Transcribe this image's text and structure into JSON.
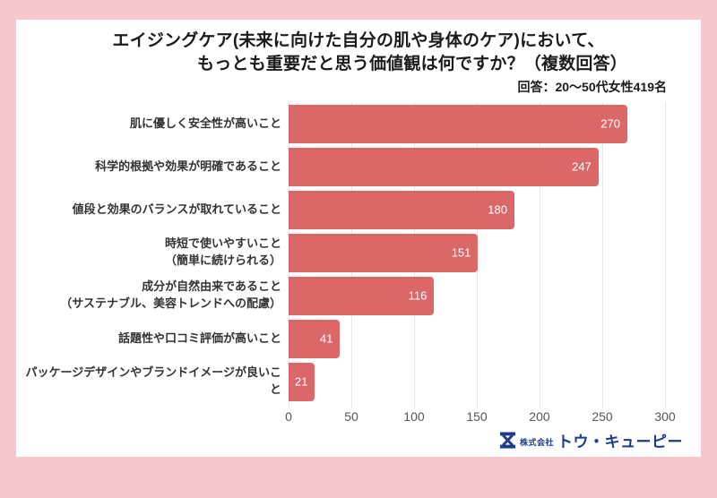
{
  "frame_color": "#f9c8cc",
  "header": {
    "title_line1": "エイジングケア(未来に向けた自分の肌や身体のケア)において、",
    "title_line2": "もっとも重要だと思う価値観は何ですか？（複数回答）",
    "subtitle": "回答：20〜50代女性419名"
  },
  "chart_data": {
    "type": "bar",
    "orientation": "horizontal",
    "title": "エイジングケア(未来に向けた自分の肌や身体のケア)において、もっとも重要だと思う価値観は何ですか？（複数回答）",
    "categories": [
      "肌に優しく安全性が高いこと",
      "科学的根拠や効果が明確であること",
      "値段と効果のバランスが取れていること",
      "時短で使いやすいこと\n（簡単に続けられる）",
      "成分が自然由来であること\n（サステナブル、美容トレンドへの配慮）",
      "話題性や口コミ評価が高いこと",
      "パッケージデザインやブランドイメージが良いこと"
    ],
    "values": [
      270,
      247,
      180,
      151,
      116,
      41,
      21
    ],
    "xticks": [
      0,
      50,
      100,
      150,
      200,
      250,
      300
    ],
    "xlim": [
      0,
      300
    ],
    "xlabel": "",
    "ylabel": "",
    "grid": true,
    "legend": "none",
    "bar_color": "#db6768",
    "value_label_color": "#ffffff",
    "gridline_color": "#e6e6e6"
  },
  "footer": {
    "company_prefix": "株式会社",
    "company_name": "トウ・キューピー",
    "logo_color": "#1d3a8f",
    "logo_mark": "hourglass-x-icon"
  }
}
